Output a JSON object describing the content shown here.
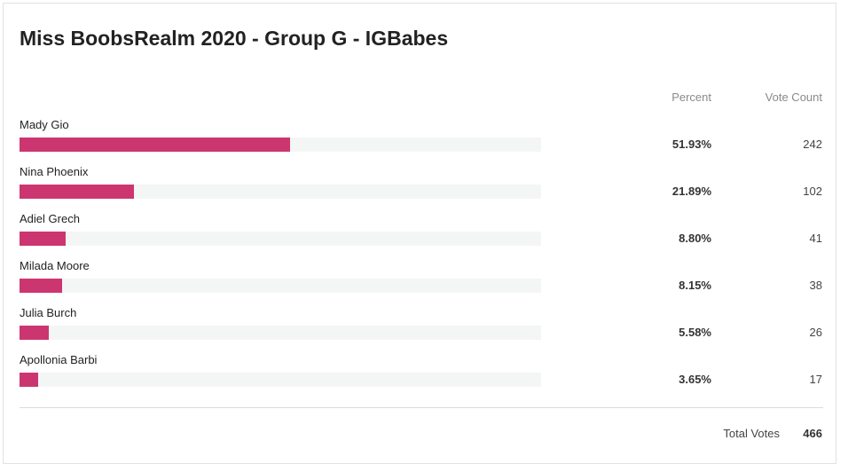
{
  "title": "Miss BoobsRealm 2020 - Group G - IGBabes",
  "columns": {
    "percent": "Percent",
    "votes": "Vote Count"
  },
  "rows": [
    {
      "name": "Mady Gio",
      "percent": 51.93,
      "percent_label": "51.93%",
      "votes": 242
    },
    {
      "name": "Nina Phoenix",
      "percent": 21.89,
      "percent_label": "21.89%",
      "votes": 102
    },
    {
      "name": "Adiel Grech",
      "percent": 8.8,
      "percent_label": "8.80%",
      "votes": 41
    },
    {
      "name": "Milada Moore",
      "percent": 8.15,
      "percent_label": "8.15%",
      "votes": 38
    },
    {
      "name": "Julia Burch",
      "percent": 5.58,
      "percent_label": "5.58%",
      "votes": 26
    },
    {
      "name": "Apollonia Barbi",
      "percent": 3.65,
      "percent_label": "3.65%",
      "votes": 17
    }
  ],
  "total": {
    "label": "Total Votes",
    "value": 466
  },
  "bar_color": "#cc3670"
}
